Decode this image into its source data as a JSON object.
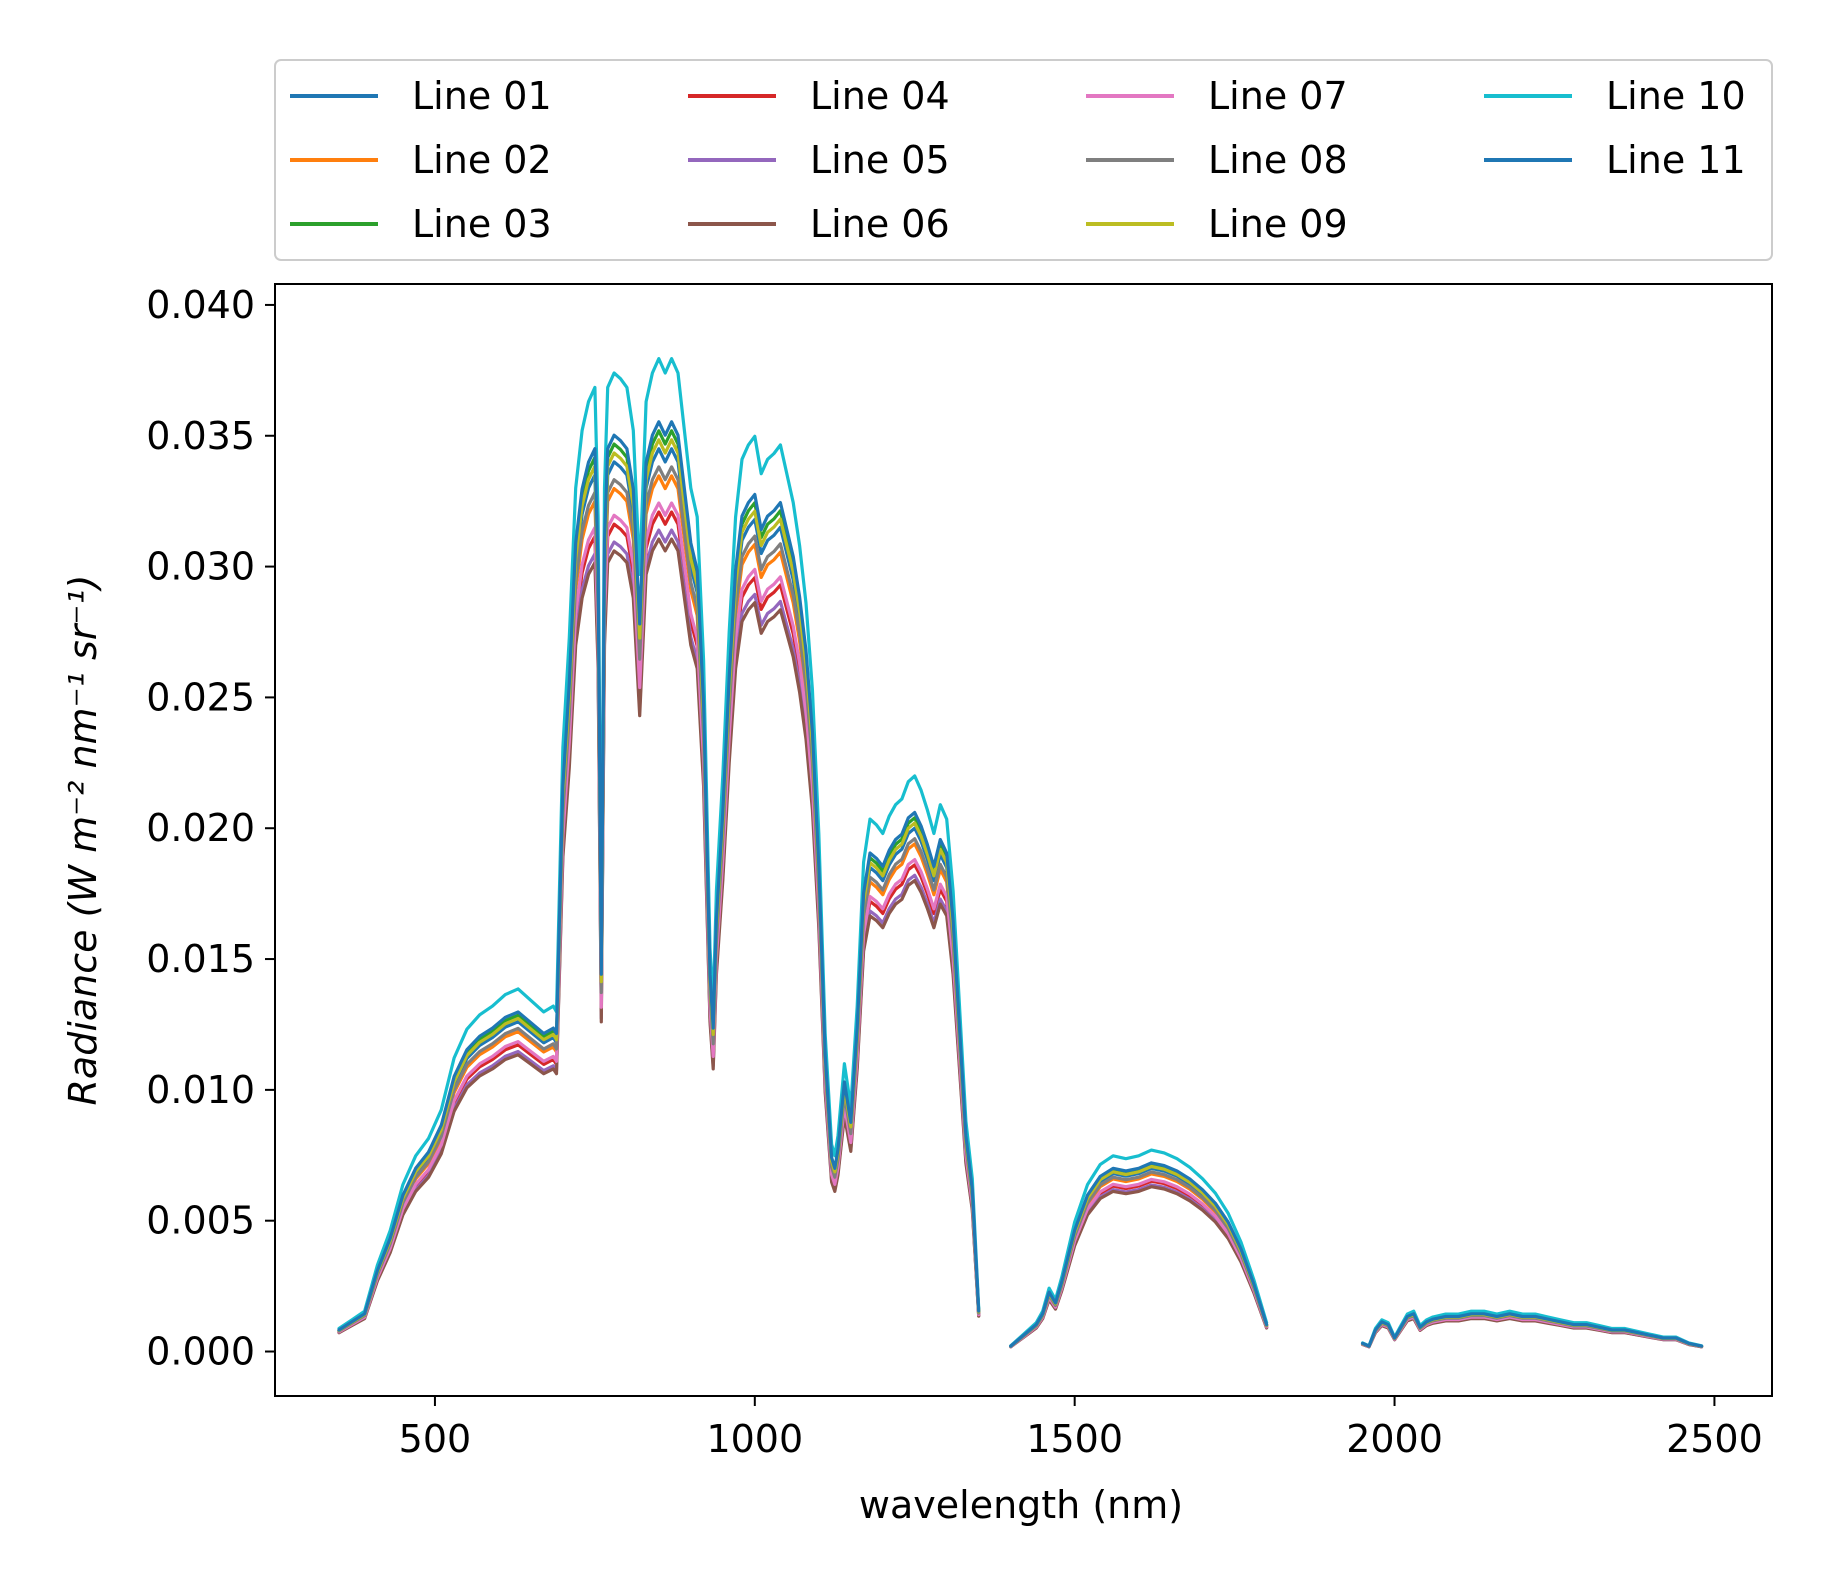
{
  "chart_data": {
    "type": "line",
    "xlabel": "wavelength (nm)",
    "ylabel": "Radiance (W m⁻² nm⁻¹ sr⁻¹)",
    "xlim": [
      250,
      2590
    ],
    "ylim": [
      -0.0017,
      0.0408
    ],
    "x_ticks": [
      "500",
      "1000",
      "1500",
      "2000",
      "2500"
    ],
    "x_tick_values": [
      500,
      1000,
      1500,
      2000,
      2500
    ],
    "y_ticks": [
      "0.000",
      "0.005",
      "0.010",
      "0.015",
      "0.020",
      "0.025",
      "0.030",
      "0.035",
      "0.040"
    ],
    "y_tick_values": [
      0,
      0.005,
      0.01,
      0.015,
      0.02,
      0.025,
      0.03,
      0.035,
      0.04
    ],
    "grid": false,
    "legend_position": "top (above plot, 4 columns)",
    "base_segments": [
      {
        "x": [
          350,
          370,
          390,
          410,
          430,
          450,
          470,
          490,
          510,
          530,
          550,
          570,
          590,
          610,
          630,
          650,
          670,
          685,
          690,
          700,
          710,
          720,
          730,
          740,
          750,
          755,
          760,
          765,
          770,
          780,
          790,
          800,
          810,
          820,
          825,
          830,
          840,
          850,
          860,
          870,
          880,
          890,
          900,
          910,
          920,
          930,
          935,
          940,
          950,
          960,
          970,
          980,
          990,
          1000,
          1010,
          1020,
          1030,
          1040,
          1050,
          1060,
          1070,
          1080,
          1090,
          1100,
          1110,
          1120,
          1125,
          1130,
          1140,
          1150,
          1160,
          1170,
          1180,
          1190,
          1200,
          1210,
          1220,
          1230,
          1240,
          1250,
          1260,
          1270,
          1280,
          1290,
          1300,
          1310,
          1320,
          1330,
          1340,
          1350
        ],
        "y": [
          0.0008,
          0.0011,
          0.0014,
          0.003,
          0.0042,
          0.0058,
          0.0068,
          0.0074,
          0.0084,
          0.0102,
          0.0112,
          0.0117,
          0.012,
          0.0124,
          0.0126,
          0.0122,
          0.0118,
          0.012,
          0.0118,
          0.021,
          0.0248,
          0.03,
          0.032,
          0.033,
          0.0335,
          0.029,
          0.014,
          0.03,
          0.0335,
          0.034,
          0.0338,
          0.0335,
          0.032,
          0.027,
          0.03,
          0.033,
          0.034,
          0.0345,
          0.034,
          0.0345,
          0.034,
          0.032,
          0.03,
          0.029,
          0.024,
          0.014,
          0.012,
          0.016,
          0.02,
          0.025,
          0.029,
          0.031,
          0.0315,
          0.0318,
          0.0305,
          0.031,
          0.0312,
          0.0315,
          0.0305,
          0.0295,
          0.028,
          0.026,
          0.023,
          0.018,
          0.011,
          0.0072,
          0.0068,
          0.0075,
          0.01,
          0.0085,
          0.012,
          0.017,
          0.0185,
          0.0183,
          0.018,
          0.0186,
          0.019,
          0.0192,
          0.0198,
          0.02,
          0.0195,
          0.0188,
          0.018,
          0.019,
          0.0185,
          0.016,
          0.012,
          0.008,
          0.006,
          0.0015
        ]
      },
      {
        "x": [
          1400,
          1420,
          1440,
          1450,
          1460,
          1470,
          1480,
          1500,
          1520,
          1540,
          1560,
          1580,
          1600,
          1620,
          1640,
          1660,
          1680,
          1700,
          1720,
          1740,
          1760,
          1780,
          1800
        ],
        "y": [
          0.0002,
          0.0006,
          0.001,
          0.0014,
          0.0022,
          0.0018,
          0.0026,
          0.0045,
          0.0058,
          0.0065,
          0.0068,
          0.0067,
          0.0068,
          0.007,
          0.0069,
          0.0067,
          0.0064,
          0.006,
          0.0055,
          0.0048,
          0.0038,
          0.0025,
          0.001
        ]
      },
      {
        "x": [
          1950,
          1960,
          1970,
          1980,
          1990,
          2000,
          2010,
          2020,
          2030,
          2040,
          2050,
          2060,
          2080,
          2100,
          2120,
          2140,
          2160,
          2180,
          2200,
          2220,
          2240,
          2260,
          2280,
          2300,
          2320,
          2340,
          2360,
          2380,
          2400,
          2420,
          2440,
          2460,
          2480
        ],
        "y": [
          0.0003,
          0.0002,
          0.0008,
          0.0011,
          0.001,
          0.0005,
          0.0009,
          0.0013,
          0.0014,
          0.0009,
          0.0011,
          0.0012,
          0.0013,
          0.0013,
          0.0014,
          0.0014,
          0.0013,
          0.0014,
          0.0013,
          0.0013,
          0.0012,
          0.0011,
          0.001,
          0.001,
          0.0009,
          0.0008,
          0.0008,
          0.0007,
          0.0006,
          0.0005,
          0.0005,
          0.0003,
          0.0002
        ]
      }
    ],
    "series": [
      {
        "name": "Line 01",
        "color": "#1f77b4",
        "scale": 1.0
      },
      {
        "name": "Line 02",
        "color": "#ff7f0e",
        "scale": 0.97
      },
      {
        "name": "Line 03",
        "color": "#2ca02c",
        "scale": 1.02
      },
      {
        "name": "Line 04",
        "color": "#d62728",
        "scale": 0.93
      },
      {
        "name": "Line 05",
        "color": "#9467bd",
        "scale": 0.91
      },
      {
        "name": "Line 06",
        "color": "#8c564b",
        "scale": 0.9
      },
      {
        "name": "Line 07",
        "color": "#e377c2",
        "scale": 0.94
      },
      {
        "name": "Line 08",
        "color": "#7f7f7f",
        "scale": 0.98
      },
      {
        "name": "Line 09",
        "color": "#bcbd22",
        "scale": 1.01
      },
      {
        "name": "Line 10",
        "color": "#17becf",
        "scale": 1.1
      },
      {
        "name": "Line 11",
        "color": "#1f77b4",
        "scale": 1.03
      }
    ]
  }
}
